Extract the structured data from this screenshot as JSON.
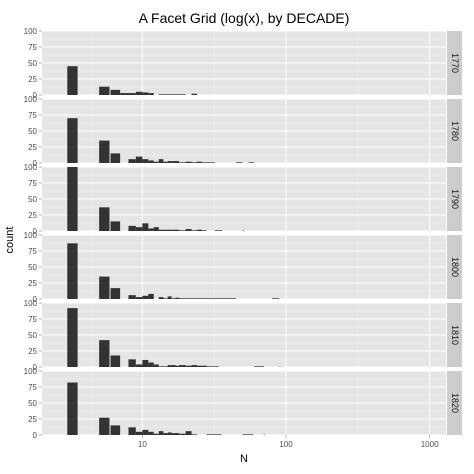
{
  "chart_data": {
    "type": "bar",
    "title": "A Facet Grid (log(x), by DECADE)",
    "xlabel": "N",
    "ylabel": "count",
    "x_scale": "log10",
    "xlim": [
      2,
      1300
    ],
    "ylim": [
      0,
      100
    ],
    "x_ticks": [
      10,
      100,
      1000
    ],
    "x_tick_labels": [
      "10",
      "100",
      "1000"
    ],
    "y_ticks": [
      0,
      25,
      50,
      75,
      100
    ],
    "y_tick_labels": [
      "0",
      "25",
      "50",
      "75",
      "100"
    ],
    "grid": true,
    "facet_strip": "right",
    "bar_color": "#333333",
    "panel_background": "#e5e5e5",
    "strip_background": "#cccccc",
    "facets": [
      {
        "label": "1770",
        "bars": [
          [
            3,
            45
          ],
          [
            4,
            0
          ],
          [
            5,
            13
          ],
          [
            6,
            8
          ],
          [
            7,
            3
          ],
          [
            8,
            3
          ],
          [
            9,
            5
          ],
          [
            10,
            4
          ],
          [
            11,
            3
          ],
          [
            12,
            0
          ],
          [
            13,
            1
          ],
          [
            14,
            1
          ],
          [
            15,
            1
          ],
          [
            16,
            1
          ],
          [
            17,
            1
          ],
          [
            18,
            1
          ],
          [
            20,
            0
          ],
          [
            22,
            2
          ],
          [
            24,
            0
          ],
          [
            26,
            0
          ],
          [
            28,
            0
          ],
          [
            30,
            0
          ]
        ]
      },
      {
        "label": "1780",
        "bars": [
          [
            3,
            70
          ],
          [
            4,
            0
          ],
          [
            5,
            35
          ],
          [
            6,
            15
          ],
          [
            7,
            0
          ],
          [
            8,
            6
          ],
          [
            9,
            10
          ],
          [
            10,
            6
          ],
          [
            11,
            4
          ],
          [
            12,
            2
          ],
          [
            13,
            6
          ],
          [
            14,
            2
          ],
          [
            15,
            3
          ],
          [
            16,
            3
          ],
          [
            17,
            3
          ],
          [
            18,
            1
          ],
          [
            20,
            2
          ],
          [
            22,
            1
          ],
          [
            24,
            2
          ],
          [
            26,
            1
          ],
          [
            28,
            1
          ],
          [
            30,
            1
          ],
          [
            32,
            0
          ],
          [
            40,
            0
          ],
          [
            45,
            1
          ],
          [
            50,
            0
          ],
          [
            55,
            1
          ],
          [
            60,
            0
          ]
        ]
      },
      {
        "label": "1790",
        "bars": [
          [
            3,
            100
          ],
          [
            4,
            0
          ],
          [
            5,
            37
          ],
          [
            6,
            15
          ],
          [
            7,
            0
          ],
          [
            8,
            8
          ],
          [
            9,
            6
          ],
          [
            10,
            12
          ],
          [
            11,
            4
          ],
          [
            12,
            6
          ],
          [
            13,
            2
          ],
          [
            14,
            2
          ],
          [
            15,
            2
          ],
          [
            16,
            2
          ],
          [
            17,
            2
          ],
          [
            18,
            1
          ],
          [
            20,
            3
          ],
          [
            22,
            1
          ],
          [
            24,
            2
          ],
          [
            26,
            1
          ],
          [
            28,
            0
          ],
          [
            30,
            0
          ],
          [
            32,
            1
          ],
          [
            36,
            0
          ],
          [
            40,
            0
          ],
          [
            45,
            0
          ],
          [
            50,
            1
          ]
        ]
      },
      {
        "label": "1800",
        "bars": [
          [
            3,
            87
          ],
          [
            4,
            0
          ],
          [
            5,
            35
          ],
          [
            6,
            17
          ],
          [
            7,
            0
          ],
          [
            8,
            6
          ],
          [
            9,
            3
          ],
          [
            10,
            5
          ],
          [
            11,
            8
          ],
          [
            12,
            0
          ],
          [
            13,
            3
          ],
          [
            14,
            1
          ],
          [
            15,
            4
          ],
          [
            16,
            1
          ],
          [
            17,
            2
          ],
          [
            18,
            1
          ],
          [
            20,
            1
          ],
          [
            22,
            1
          ],
          [
            24,
            1
          ],
          [
            26,
            1
          ],
          [
            28,
            1
          ],
          [
            30,
            1
          ],
          [
            34,
            1
          ],
          [
            40,
            1
          ],
          [
            45,
            0
          ],
          [
            50,
            0
          ],
          [
            60,
            0
          ],
          [
            70,
            0
          ],
          [
            80,
            1
          ],
          [
            90,
            0
          ]
        ]
      },
      {
        "label": "1810",
        "bars": [
          [
            3,
            92
          ],
          [
            4,
            0
          ],
          [
            5,
            42
          ],
          [
            6,
            18
          ],
          [
            7,
            0
          ],
          [
            8,
            12
          ],
          [
            9,
            4
          ],
          [
            10,
            11
          ],
          [
            11,
            7
          ],
          [
            12,
            4
          ],
          [
            13,
            1
          ],
          [
            14,
            1
          ],
          [
            15,
            3
          ],
          [
            16,
            3
          ],
          [
            17,
            2
          ],
          [
            18,
            3
          ],
          [
            20,
            2
          ],
          [
            22,
            3
          ],
          [
            24,
            2
          ],
          [
            26,
            2
          ],
          [
            28,
            1
          ],
          [
            30,
            1
          ],
          [
            34,
            0
          ],
          [
            40,
            0
          ],
          [
            60,
            1
          ],
          [
            70,
            0
          ],
          [
            80,
            0
          ],
          [
            90,
            1
          ]
        ]
      },
      {
        "label": "1820",
        "bars": [
          [
            3,
            82
          ],
          [
            4,
            0
          ],
          [
            5,
            27
          ],
          [
            6,
            15
          ],
          [
            7,
            0
          ],
          [
            8,
            12
          ],
          [
            9,
            5
          ],
          [
            10,
            8
          ],
          [
            11,
            5
          ],
          [
            12,
            2
          ],
          [
            13,
            6
          ],
          [
            14,
            3
          ],
          [
            15,
            4
          ],
          [
            16,
            3
          ],
          [
            17,
            3
          ],
          [
            18,
            2
          ],
          [
            20,
            6
          ],
          [
            22,
            1
          ],
          [
            24,
            0
          ],
          [
            26,
            0
          ],
          [
            28,
            1
          ],
          [
            30,
            1
          ],
          [
            40,
            0
          ],
          [
            50,
            1
          ],
          [
            60,
            0
          ],
          [
            70,
            1
          ]
        ]
      }
    ]
  }
}
